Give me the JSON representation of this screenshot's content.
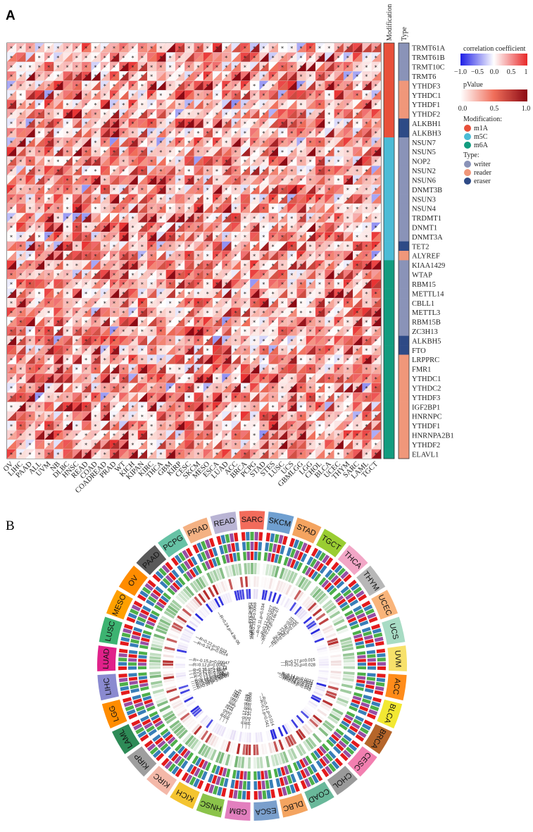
{
  "panel_a_label": "A",
  "panel_b_label": "B",
  "colors": {
    "m1A": "#e8503a",
    "m5C": "#4cbcd6",
    "m6A": "#129c7f",
    "writer": "#8a93b8",
    "reader": "#f0977a",
    "eraser": "#2e4a86"
  },
  "chart_data": [
    {
      "type": "heatmap",
      "annotation_titles": [
        "Modification",
        "Type"
      ],
      "x_categories": [
        "OV",
        "LIHC",
        "PAAD",
        "ALL",
        "UVM",
        "NB",
        "DLBC",
        "HNSC",
        "READ",
        "COAD",
        "COADREAD",
        "PRAD",
        "WT",
        "KICH",
        "KIPAN",
        "KIRC",
        "THCA",
        "GBM",
        "KIRP",
        "CESC",
        "SKCM",
        "MESO",
        "ESCA",
        "LUAD",
        "ACC",
        "BRCA",
        "PCPG",
        "STAD",
        "STES",
        "LUSC",
        "UCS",
        "GBMLGG",
        "LGG",
        "CHOL",
        "BLCA",
        "UCEC",
        "THYM",
        "SARC",
        "LAML",
        "TGCT"
      ],
      "genes": [
        "TRMT61A",
        "TRMT61B",
        "TRMT10C",
        "TRMT6",
        "YTHDF3",
        "YTHDC1",
        "YTHDF1",
        "YTHDF2",
        "ALKBH1",
        "ALKBH3",
        "NSUN7",
        "NSUN5",
        "NOP2",
        "NSUN2",
        "NSUN6",
        "DNMT3B",
        "NSUN3",
        "NSUN4",
        "TRDMT1",
        "DNMT1",
        "DNMT3A",
        "TET2",
        "ALYREF",
        "KIAA1429",
        "WTAP",
        "RBM15",
        "METTL14",
        "CBLL1",
        "METTL3",
        "RBM15B",
        "ZC3H13",
        "ALKBH5",
        "FTO",
        "LRPPRC",
        "FMR1",
        "YTHDC1",
        "YTHDC2",
        "YTHDF3",
        "IGF2BP1",
        "HNRNPC",
        "YTHDF1",
        "HNRNPA2B1",
        "YTHDF2",
        "ELAVL1"
      ],
      "modification": [
        "m1A",
        "m1A",
        "m1A",
        "m1A",
        "m1A",
        "m1A",
        "m1A",
        "m1A",
        "m1A",
        "m1A",
        "m5C",
        "m5C",
        "m5C",
        "m5C",
        "m5C",
        "m5C",
        "m5C",
        "m5C",
        "m5C",
        "m5C",
        "m5C",
        "m5C",
        "m5C",
        "m6A",
        "m6A",
        "m6A",
        "m6A",
        "m6A",
        "m6A",
        "m6A",
        "m6A",
        "m6A",
        "m6A",
        "m6A",
        "m6A",
        "m6A",
        "m6A",
        "m6A",
        "m6A",
        "m6A",
        "m6A",
        "m6A",
        "m6A",
        "m6A"
      ],
      "gene_type": [
        "writer",
        "writer",
        "writer",
        "writer",
        "reader",
        "reader",
        "reader",
        "reader",
        "eraser",
        "eraser",
        "writer",
        "writer",
        "writer",
        "writer",
        "writer",
        "writer",
        "writer",
        "writer",
        "writer",
        "writer",
        "writer",
        "eraser",
        "reader",
        "writer",
        "writer",
        "writer",
        "writer",
        "writer",
        "writer",
        "writer",
        "writer",
        "eraser",
        "eraser",
        "reader",
        "reader",
        "reader",
        "reader",
        "reader",
        "reader",
        "reader",
        "reader",
        "reader",
        "reader",
        "reader"
      ],
      "legend": {
        "cor_title": "correlation coefficient",
        "cor_ticks": [
          "−1.0",
          "−0.5",
          "0.0",
          "0.5",
          "1"
        ],
        "cor_range": [
          -1,
          1
        ],
        "p_title": "pValue",
        "p_ticks": [
          "0.0",
          "0.5",
          "1.0"
        ],
        "p_range": [
          0,
          1
        ],
        "mod_title": "Modification:",
        "mod_items": [
          "m1A",
          "m5C",
          "m6A"
        ],
        "type_title": "Type:",
        "type_items": [
          "writer",
          "reader",
          "eraser"
        ]
      },
      "significance_marker": "*"
    },
    {
      "type": "circular",
      "cancers": [
        "SARC",
        "SKCM",
        "STAD",
        "TGCT",
        "THCA",
        "THYM",
        "UCEC",
        "UCS",
        "UVM",
        "ACC",
        "BLCA",
        "BRCA",
        "CESC",
        "CHOL",
        "COAD",
        "DLBC",
        "ESCA",
        "GBM",
        "HNSC",
        "KICH",
        "KIRC",
        "KIRP",
        "LAML",
        "LGG",
        "LIHC",
        "LUAD",
        "LUSC",
        "MESO",
        "OV",
        "PAAD",
        "PCPG",
        "PRAD",
        "READ"
      ],
      "cancer_colors": [
        "#f26b5b",
        "#6f9fd0",
        "#f4a460",
        "#9acd32",
        "#f2a6c6",
        "#b7b7b7",
        "#f9b47a",
        "#a8dcc4",
        "#f7e16a",
        "#ff8c1a",
        "#f2e832",
        "#b5652a",
        "#f27fb0",
        "#9a9a9a",
        "#69b89a",
        "#f4a460",
        "#7a9fcc",
        "#e27fbe",
        "#8bc34a",
        "#f4c430",
        "#f4b8a8",
        "#9e9e9e",
        "#2e8b57",
        "#ff8c00",
        "#8a8ad0",
        "#e0218a",
        "#3cb371",
        "#ffa000",
        "#ff8c00",
        "#5a5a5a",
        "#66c2a5",
        "#f4b183",
        "#b9b4d4"
      ],
      "annotations": [
        {
          "cancer": "SARC",
          "labels": [
            "R=0.32,p=0.0006",
            "R=0.22,p=0.034",
            "R=0.19,p=0.0068"
          ]
        },
        {
          "cancer": "SKCM",
          "labels": [
            "R=0.11,p=0.034"
          ]
        },
        {
          "cancer": "STAD",
          "labels": [
            "R=0.12,p=0.027",
            "R=0.16,p=0.0045",
            "R=-0.23,p=3.6e-07"
          ]
        },
        {
          "cancer": "THCA",
          "labels": [
            "R=-0.23,p=0.01",
            "R=-0.28,p=0.0021",
            "R=-0.05,p=0.035"
          ]
        },
        {
          "cancer": "UVM",
          "labels": [
            "R=0.27,p=0.015",
            "R=0.25,p=0.028"
          ]
        },
        {
          "cancer": "BLCA",
          "labels": [
            "R=0.14,p=0.0037",
            "R=0.15,p=0.0028",
            "R=0.12,p=0.015",
            "R=0.1,p=0.042",
            "R=0.09,p=0.043"
          ]
        },
        {
          "cancer": "DLBC",
          "labels": [
            "R=0.41,p=0.014",
            "R=0.1,p=0.041"
          ]
        },
        {
          "cancer": "GBM",
          "labels": [
            "R=0.31,p=0.0008",
            "R=0.22,p=0.017",
            "R=0.17,p=0.028"
          ]
        },
        {
          "cancer": "KICH",
          "labels": [
            "R=0.44,p=0.0019",
            "R=0.33,p=0.012",
            "R=0.28,p=0.037"
          ]
        },
        {
          "cancer": "LIHC",
          "labels": [
            "R=0.14,p=0.0057",
            "R=0.42,p=2.8e-14",
            "R=0.38,p=5.4e-12"
          ]
        },
        {
          "cancer": "LGG",
          "labels": [
            "R=0.19,p=1.3e-05",
            "R=-0.28,p=3e-09",
            "R=0.15,p=0.00058",
            "R=0.18,p=2e-05",
            "R=0.13,p=0.008"
          ]
        },
        {
          "cancer": "LUAD",
          "labels": [
            "R=0.12,p=0.0061",
            "R=-0.15,p=0.00047"
          ]
        },
        {
          "cancer": "MESO",
          "labels": [
            "R=0.24,p=0.0014",
            "R=0.22,p=0.019"
          ]
        },
        {
          "cancer": "PCPG",
          "labels": [
            "R=0.24,p=4.9e-06"
          ]
        }
      ]
    }
  ]
}
